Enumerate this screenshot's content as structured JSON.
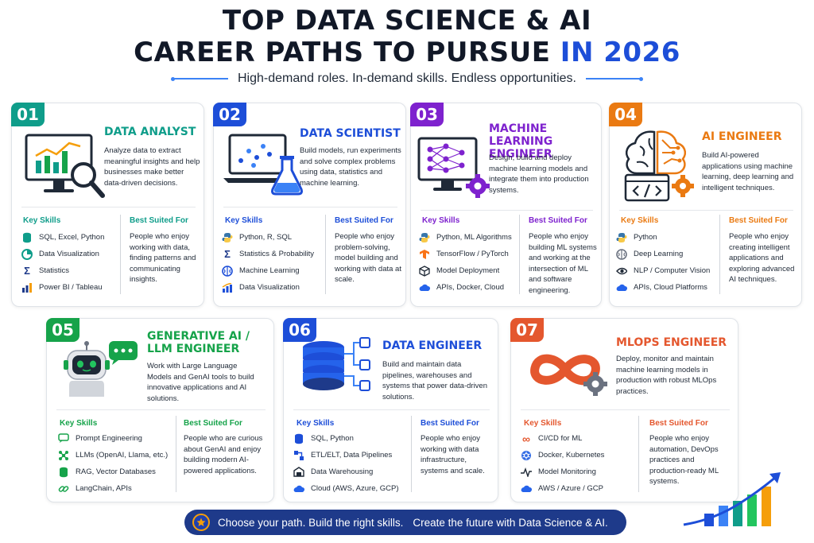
{
  "header": {
    "title_line1": "TOP DATA SCIENCE & AI",
    "title_line2_main": "CAREER PATHS TO PURSUE",
    "title_line2_accent": "IN 2026",
    "subtitle": "High-demand roles. In-demand skills. Endless opportunities."
  },
  "labels": {
    "key_skills": "Key Skills",
    "best_suited": "Best Suited For"
  },
  "cards": [
    {
      "num": "01",
      "title": "DATA ANALYST",
      "desc": "Analyze data to extract meaningful insights and help businesses make better data-driven decisions.",
      "skills": [
        "SQL, Excel, Python",
        "Data Visualization",
        "Statistics",
        "Power BI / Tableau"
      ],
      "best": "People who enjoy working with data, finding patterns and communicating insights.",
      "color": "#0f9d8a"
    },
    {
      "num": "02",
      "title": "DATA SCIENTIST",
      "desc": "Build models, run experiments and solve complex problems using data, statistics and machine learning.",
      "skills": [
        "Python, R, SQL",
        "Statistics & Probability",
        "Machine Learning",
        "Data Visualization"
      ],
      "best": "People who enjoy problem-solving, model building and working with data at scale.",
      "color": "#1d4ed8"
    },
    {
      "num": "03",
      "title": "MACHINE LEARNING ENGINEER",
      "desc": "Design, build and deploy machine learning models and integrate them into production systems.",
      "skills": [
        "Python, ML Algorithms",
        "TensorFlow / PyTorch",
        "Model Deployment",
        "APIs, Docker, Cloud"
      ],
      "best": "People who enjoy building ML systems and working at the intersection of ML and software engineering.",
      "color": "#7e22ce"
    },
    {
      "num": "04",
      "title": "AI ENGINEER",
      "desc": "Build AI-powered applications using machine learning, deep learning and intelligent techniques.",
      "skills": [
        "Python",
        "Deep Learning",
        "NLP / Computer Vision",
        "APIs, Cloud Platforms"
      ],
      "best": "People who enjoy creating intelligent applications and exploring advanced AI techniques.",
      "color": "#ea7a12"
    },
    {
      "num": "05",
      "title": "GENERATIVE AI / LLM ENGINEER",
      "desc": "Work with Large Language Models and GenAI tools to build innovative applications and AI solutions.",
      "skills": [
        "Prompt Engineering",
        "LLMs (OpenAI, Llama, etc.)",
        "RAG, Vector Databases",
        "LangChain, APIs"
      ],
      "best": "People who are curious about GenAI and enjoy building modern AI-powered applications.",
      "color": "#16a34a"
    },
    {
      "num": "06",
      "title": "DATA ENGINEER",
      "desc": "Build and maintain data pipelines, warehouses and systems that power data-driven solutions.",
      "skills": [
        "SQL, Python",
        "ETL/ELT, Data Pipelines",
        "Data Warehousing",
        "Cloud (AWS, Azure, GCP)"
      ],
      "best": "People who enjoy working with data infrastructure, systems and scale.",
      "color": "#1d4ed8"
    },
    {
      "num": "07",
      "title": "MLOPS ENGINEER",
      "desc": "Deploy, monitor and maintain machine learning models in production with robust MLOps practices.",
      "skills": [
        "CI/CD for ML",
        "Docker, Kubernetes",
        "Model Monitoring",
        "AWS / Azure / GCP"
      ],
      "best": "People who enjoy automation, DevOps practices and production-ready ML systems.",
      "color": "#e4572e"
    }
  ],
  "footer": {
    "text1": "Choose your path. Build the right skills.",
    "text2": "Create the future with Data Science & AI."
  }
}
